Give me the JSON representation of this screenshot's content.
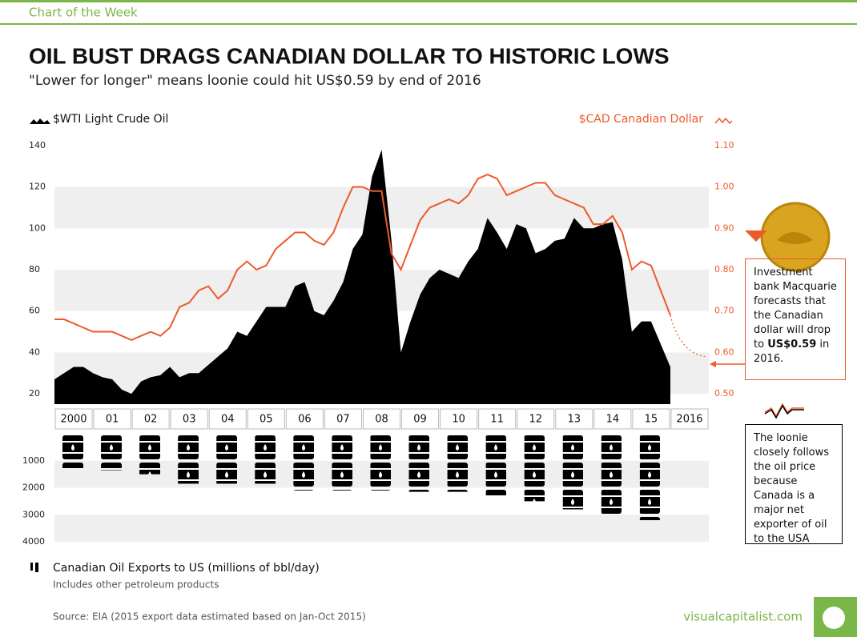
{
  "header": {
    "kicker": "Chart of the Week",
    "title": "OIL BUST DRAGS CANADIAN DOLLAR TO HISTORIC LOWS",
    "subtitle": "\"Lower for longer\" means loonie could hit US$0.59 by end of 2016"
  },
  "chart_data": [
    {
      "type": "line",
      "x": [
        2000,
        2000.25,
        2000.5,
        2000.75,
        2001,
        2001.25,
        2001.5,
        2001.75,
        2002,
        2002.25,
        2002.5,
        2002.75,
        2003,
        2003.25,
        2003.5,
        2003.75,
        2004,
        2004.25,
        2004.5,
        2004.75,
        2005,
        2005.25,
        2005.5,
        2005.75,
        2006,
        2006.25,
        2006.5,
        2006.75,
        2007,
        2007.25,
        2007.5,
        2007.75,
        2008,
        2008.25,
        2008.5,
        2008.75,
        2009,
        2009.25,
        2009.5,
        2009.75,
        2010,
        2010.25,
        2010.5,
        2010.75,
        2011,
        2011.25,
        2011.5,
        2011.75,
        2012,
        2012.25,
        2012.5,
        2012.75,
        2013,
        2013.25,
        2013.5,
        2013.75,
        2014,
        2014.25,
        2014.5,
        2014.75,
        2015,
        2015.25,
        2015.5,
        2015.75,
        2016
      ],
      "xlim": [
        2000,
        2017
      ],
      "year_labels": [
        "2000",
        "01",
        "02",
        "03",
        "04",
        "05",
        "06",
        "07",
        "08",
        "09",
        "10",
        "11",
        "12",
        "13",
        "14",
        "15",
        "2016"
      ],
      "series": [
        {
          "name": "$WTI Light Crude Oil",
          "color": "#000000",
          "fill": true,
          "values": [
            27,
            30,
            33,
            33,
            30,
            28,
            27,
            22,
            20,
            26,
            28,
            29,
            33,
            28,
            30,
            30,
            34,
            38,
            42,
            50,
            48,
            55,
            62,
            62,
            62,
            72,
            74,
            60,
            58,
            65,
            74,
            90,
            97,
            125,
            138,
            95,
            40,
            55,
            68,
            76,
            80,
            78,
            76,
            84,
            90,
            105,
            98,
            90,
            102,
            100,
            88,
            90,
            94,
            95,
            105,
            100,
            100,
            102,
            103,
            85,
            50,
            55,
            55,
            44,
            33
          ]
        },
        {
          "name": "$CAD Canadian Dollar",
          "color": "#ee5a2b",
          "axis": "y2",
          "values": [
            0.68,
            0.68,
            0.67,
            0.66,
            0.65,
            0.65,
            0.65,
            0.64,
            0.63,
            0.64,
            0.65,
            0.64,
            0.66,
            0.71,
            0.72,
            0.75,
            0.76,
            0.73,
            0.75,
            0.8,
            0.82,
            0.8,
            0.81,
            0.85,
            0.87,
            0.89,
            0.89,
            0.87,
            0.86,
            0.89,
            0.95,
            1.0,
            1.0,
            0.99,
            0.99,
            0.84,
            0.8,
            0.86,
            0.92,
            0.95,
            0.96,
            0.97,
            0.96,
            0.98,
            1.02,
            1.03,
            1.02,
            0.98,
            0.99,
            1.0,
            1.01,
            1.01,
            0.98,
            0.97,
            0.96,
            0.95,
            0.91,
            0.91,
            0.93,
            0.89,
            0.8,
            0.82,
            0.81,
            0.75,
            0.69
          ]
        }
      ],
      "forecast_x": [
        2016,
        2016.9
      ],
      "forecast_values": [
        0.69,
        0.59
      ],
      "ylim": [
        15,
        145
      ],
      "yticks": [
        20,
        40,
        60,
        80,
        100,
        120,
        140
      ],
      "y2lim": [
        0.475,
        1.125
      ],
      "y2ticks": [
        {
          "value": 0.5,
          "label": "0.50"
        },
        {
          "value": 0.6,
          "label": "0.60"
        },
        {
          "value": 0.7,
          "label": "0.70"
        },
        {
          "value": 0.8,
          "label": "0.80"
        },
        {
          "value": 0.9,
          "label": "0.90"
        },
        {
          "value": 1.0,
          "label": "1.00"
        },
        {
          "value": 1.1,
          "label": "1.10"
        }
      ],
      "bands": true
    },
    {
      "type": "bar",
      "title": "Canadian Oil Exports to US (millions of bbl/day)",
      "note": "Includes other petroleum products",
      "values": [
        1300,
        1350,
        1500,
        1850,
        1850,
        1850,
        2100,
        2100,
        2100,
        2150,
        2150,
        2300,
        2500,
        2800,
        3000,
        3200
      ],
      "ylim": [
        0,
        4000
      ],
      "yticks": [
        1000,
        2000,
        3000,
        4000
      ],
      "color": "#000000",
      "bands": true
    }
  ],
  "callouts": {
    "forecast_pre": "Investment bank Macquarie forecasts that the Canadian dollar will drop to",
    "forecast_bold": "US$0.59",
    "forecast_post": "in 2016.",
    "loonie": "The loonie closely follows the oil price because Canada is a major net exporter of oil to the USA"
  },
  "footer": {
    "source": "Source: EIA (2015 export data estimated based on Jan-Oct 2015)",
    "brand": "visualcapitalist.com"
  }
}
